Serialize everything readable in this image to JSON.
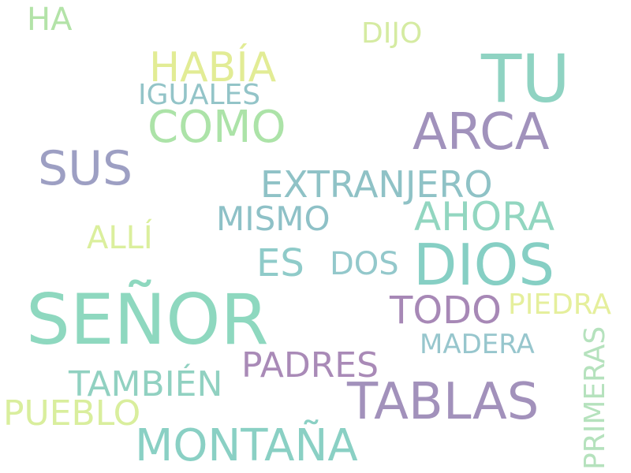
{
  "word_cloud": {
    "background": "#ffffff",
    "words": {
      "senor": {
        "text": "SEÑOR",
        "color": "#8ed8bf"
      },
      "dios": {
        "text": "DIOS",
        "color": "#86cfc4"
      },
      "tu": {
        "text": "TU",
        "color": "#8fd3c2"
      },
      "tablas": {
        "text": "TABLAS",
        "color": "#a291bb"
      },
      "montana": {
        "text": "MONTAÑA",
        "color": "#8ad0c4"
      },
      "arca": {
        "text": "ARCA",
        "color": "#a192bc"
      },
      "sus": {
        "text": "SUS",
        "color": "#9d9fc3"
      },
      "como": {
        "text": "COMO",
        "color": "#ace3a8"
      },
      "habia": {
        "text": "HABÍA",
        "color": "#e2ec95"
      },
      "ahora": {
        "text": "AHORA",
        "color": "#92d6c0"
      },
      "todo": {
        "text": "TODO",
        "color": "#a788b6"
      },
      "extranjero": {
        "text": "EXTRANJERO",
        "color": "#8fc2c6"
      },
      "es": {
        "text": "ES",
        "color": "#8fcbc9"
      },
      "padres": {
        "text": "PADRES",
        "color": "#a98ab7"
      },
      "tambien": {
        "text": "TAMBIÉN",
        "color": "#91d1c1"
      },
      "pueblo": {
        "text": "PUEBLO",
        "color": "#d9ee9d"
      },
      "mismo": {
        "text": "MISMO",
        "color": "#8ec1c7"
      },
      "dos": {
        "text": "DOS",
        "color": "#93c8cb"
      },
      "ha": {
        "text": "HA",
        "color": "#b3e3a8"
      },
      "alli": {
        "text": "ALLÍ",
        "color": "#dbef9d"
      },
      "iguales": {
        "text": "IGUALES",
        "color": "#93c4c8"
      },
      "piedra": {
        "text": "PIEDRA",
        "color": "#e5ef9c"
      },
      "dijo": {
        "text": "DIJO",
        "color": "#d5eba2"
      },
      "madera": {
        "text": "MADERA",
        "color": "#97c6cd"
      },
      "primeras": {
        "text": "PRIMERAS",
        "color": "#b5e2bd"
      }
    }
  }
}
